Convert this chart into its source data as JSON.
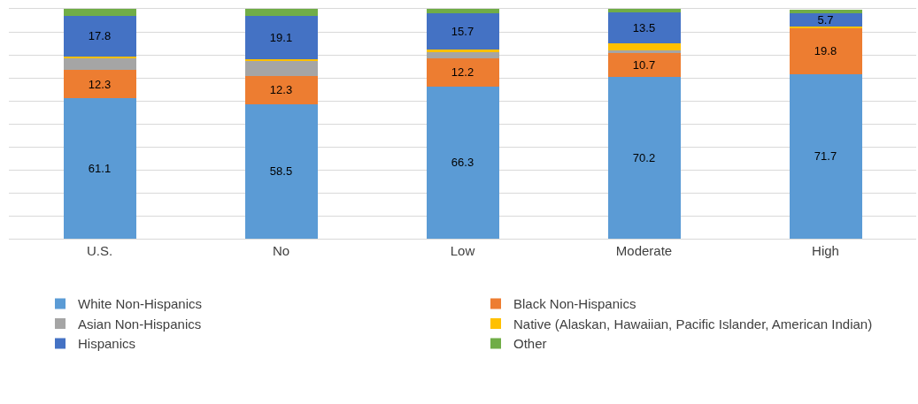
{
  "chart_data": {
    "type": "bar",
    "stacked": true,
    "categories": [
      "U.S.",
      "No",
      "Low",
      "Moderate",
      "High"
    ],
    "series": [
      {
        "name": "White Non-Hispanics",
        "color": "#5b9bd5",
        "values": [
          61.1,
          58.5,
          66.3,
          70.2,
          71.7
        ],
        "value_labels": [
          "61.1",
          "58.5",
          "66.3",
          "70.2",
          "71.7"
        ]
      },
      {
        "name": "Black Non-Hispanics",
        "color": "#ed7d31",
        "values": [
          12.3,
          12.3,
          12.2,
          10.7,
          19.8
        ],
        "value_labels": [
          "12.3",
          "12.3",
          "12.2",
          "10.7",
          "19.8"
        ]
      },
      {
        "name": "Asian Non-Hispanics",
        "color": "#a5a5a5",
        "values": [
          5.0,
          6.6,
          2.5,
          1.1,
          null
        ]
      },
      {
        "name": "Native (Alaskan, Hawaiian, Pacific Islander, American Indian)",
        "color": "#ffc000",
        "values": [
          0.8,
          0.5,
          1.3,
          3.0,
          0.8
        ]
      },
      {
        "name": "Hispanics",
        "color": "#4472c4",
        "values": [
          17.8,
          19.1,
          15.7,
          13.5,
          5.7
        ],
        "value_labels": [
          "17.8",
          "19.1",
          "15.7",
          "13.5",
          "5.7"
        ]
      },
      {
        "name": "Other",
        "color": "#70ad47",
        "values": [
          3.0,
          3.0,
          2.0,
          1.5,
          1.5
        ]
      }
    ],
    "ylim": [
      0,
      100
    ],
    "yticks": [
      {
        "value": 0,
        "label": null
      },
      {
        "value": 10,
        "label": null
      },
      {
        "value": 20,
        "label": null
      },
      {
        "value": 30,
        "label": null
      },
      {
        "value": 40,
        "label": null
      },
      {
        "value": 50,
        "label": null
      },
      {
        "value": 60,
        "label": null
      },
      {
        "value": 70,
        "label": null
      },
      {
        "value": 80,
        "label": null
      },
      {
        "value": 90,
        "label": null
      },
      {
        "value": 100,
        "label": null
      }
    ],
    "tick_labels": "x",
    "grid": "y",
    "legend": "bottom"
  }
}
